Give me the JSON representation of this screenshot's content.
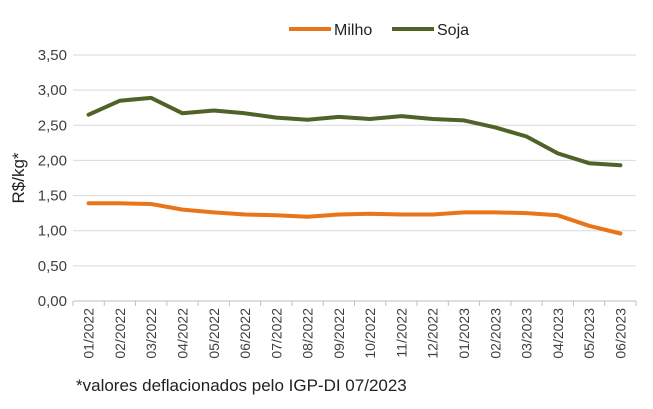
{
  "chart_data": {
    "type": "line",
    "categories": [
      "01/2022",
      "02/2022",
      "03/2022",
      "04/2022",
      "05/2022",
      "06/2022",
      "07/2022",
      "08/2022",
      "09/2022",
      "10/2022",
      "11/2022",
      "12/2022",
      "01/2023",
      "02/2023",
      "03/2023",
      "04/2023",
      "05/2023",
      "06/2023"
    ],
    "series": [
      {
        "name": "Milho",
        "color": "#E8751A",
        "values": [
          1.39,
          1.39,
          1.38,
          1.3,
          1.26,
          1.23,
          1.22,
          1.2,
          1.23,
          1.24,
          1.23,
          1.23,
          1.26,
          1.26,
          1.25,
          1.22,
          1.07,
          0.96
        ]
      },
      {
        "name": "Soja",
        "color": "#4F6228",
        "values": [
          2.65,
          2.85,
          2.89,
          2.67,
          2.71,
          2.67,
          2.61,
          2.58,
          2.62,
          2.59,
          2.63,
          2.59,
          2.57,
          2.47,
          2.34,
          2.1,
          1.96,
          1.93
        ]
      }
    ],
    "ylabel": "R$/kg*",
    "ylim": [
      0,
      3.5
    ],
    "yticks": [
      "0,00",
      "0,50",
      "1,00",
      "1,50",
      "2,00",
      "2,50",
      "3,00",
      "3,50"
    ],
    "grid": true,
    "legend": "top-center"
  },
  "footnote": "*valores deflacionados pelo IGP-DI 07/2023"
}
